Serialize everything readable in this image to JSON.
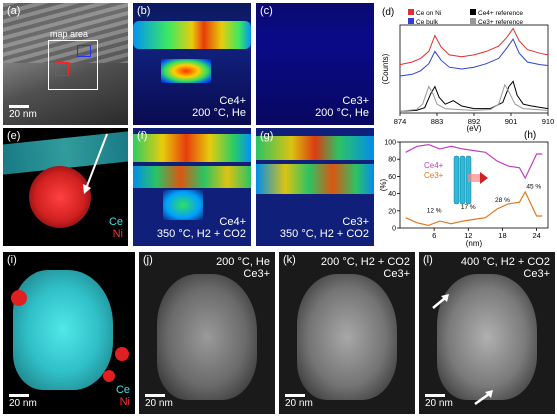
{
  "panels": {
    "a": {
      "label": "(a)",
      "map_area": "map area",
      "scale": "20 nm"
    },
    "b": {
      "label": "(b)",
      "species": "Ce4+",
      "condition": "200 °C, He"
    },
    "c": {
      "label": "(c)",
      "species": "Ce3+",
      "condition": "200 °C, He"
    },
    "e": {
      "label": "(e)",
      "elem1": "Ce",
      "elem2": "Ni"
    },
    "f": {
      "label": "(f)",
      "species": "Ce4+",
      "condition": "350 °C, H2 + CO2"
    },
    "g": {
      "label": "(g)",
      "species": "Ce3+",
      "condition": "350 °C, H2 + CO2"
    },
    "i": {
      "label": "(i)",
      "elem1": "Ce",
      "elem2": "Ni",
      "scale": "20 nm"
    },
    "j": {
      "label": "(j)",
      "condition": "200 °C, He",
      "species": "Ce3+",
      "scale": "20 nm"
    },
    "k": {
      "label": "(k)",
      "condition": "200 °C, H2 + CO2",
      "species": "Ce3+",
      "scale": "20 nm"
    },
    "l": {
      "label": "(l)",
      "condition": "400 °C, H2 + CO2",
      "species": "Ce3+",
      "scale": "20 nm"
    }
  },
  "chart_data": [
    {
      "panel": "(d)",
      "type": "line",
      "xlabel": "(eV)",
      "ylabel": "(Counts)",
      "x_ticks": [
        874,
        883,
        892,
        901,
        910
      ],
      "xlim": [
        874,
        910
      ],
      "legend": [
        "Ce on Ni",
        "Ce bulk",
        "Ce4+ reference",
        "Ce3+ reference"
      ],
      "legend_placement": "top",
      "series": [
        {
          "name": "Ce on Ni",
          "color": "#e03030",
          "x": [
            874,
            877,
            879,
            881,
            882.5,
            884,
            886,
            889,
            892,
            895,
            898,
            900,
            901.5,
            903,
            905,
            908,
            910
          ],
          "y": [
            0.55,
            0.58,
            0.62,
            0.7,
            0.88,
            0.75,
            0.66,
            0.64,
            0.66,
            0.7,
            0.76,
            0.86,
            0.96,
            0.82,
            0.72,
            0.68,
            0.66
          ]
        },
        {
          "name": "Ce bulk",
          "color": "#3040d0",
          "x": [
            874,
            877,
            879,
            881,
            882.5,
            884,
            886,
            889,
            892,
            895,
            898,
            900,
            901.5,
            903,
            905,
            908,
            910
          ],
          "y": [
            0.42,
            0.44,
            0.48,
            0.56,
            0.7,
            0.6,
            0.52,
            0.5,
            0.52,
            0.56,
            0.62,
            0.74,
            0.84,
            0.68,
            0.58,
            0.55,
            0.54
          ]
        },
        {
          "name": "Ce4+ reference",
          "color": "#000000",
          "x": [
            874,
            878,
            880,
            881.5,
            882.5,
            883.5,
            885,
            887,
            889,
            892,
            896,
            899,
            900.5,
            901.5,
            902.5,
            904,
            906,
            910
          ],
          "y": [
            0.02,
            0.03,
            0.06,
            0.22,
            0.3,
            0.18,
            0.1,
            0.14,
            0.08,
            0.05,
            0.05,
            0.12,
            0.3,
            0.36,
            0.2,
            0.1,
            0.08,
            0.05
          ]
        },
        {
          "name": "Ce3+ reference",
          "color": "#999999",
          "x": [
            874,
            878,
            879.5,
            881,
            882,
            883,
            885,
            888,
            892,
            896,
            898,
            899.5,
            900.5,
            902,
            904,
            910
          ],
          "y": [
            0.02,
            0.04,
            0.1,
            0.3,
            0.22,
            0.1,
            0.05,
            0.04,
            0.03,
            0.04,
            0.1,
            0.32,
            0.24,
            0.1,
            0.05,
            0.03
          ]
        }
      ]
    },
    {
      "panel": "(h)",
      "type": "line",
      "xlabel": "(nm)",
      "ylabel": "(%)",
      "x_ticks": [
        6,
        12,
        18,
        24
      ],
      "y_ticks": [
        0,
        20,
        40,
        60,
        80,
        100
      ],
      "xlim": [
        0,
        26
      ],
      "ylim": [
        0,
        100
      ],
      "legend": [
        "Ce4+",
        "Ce3+"
      ],
      "annotations": [
        "12 %",
        "17 %",
        "28 %",
        "45 %"
      ],
      "series": [
        {
          "name": "Ce4+",
          "color": "#c040c0",
          "x": [
            1,
            3,
            5,
            7,
            9,
            11,
            13,
            15,
            17,
            19,
            21,
            22,
            23,
            24,
            25
          ],
          "y": [
            88,
            95,
            97,
            92,
            95,
            92,
            90,
            88,
            78,
            72,
            70,
            58,
            72,
            86,
            86
          ]
        },
        {
          "name": "Ce3+",
          "color": "#e07820",
          "x": [
            1,
            3,
            5,
            7,
            9,
            11,
            13,
            15,
            17,
            19,
            21,
            22,
            23,
            24,
            25
          ],
          "y": [
            12,
            6,
            3,
            8,
            5,
            8,
            10,
            12,
            22,
            28,
            30,
            42,
            28,
            14,
            14
          ]
        }
      ]
    }
  ]
}
